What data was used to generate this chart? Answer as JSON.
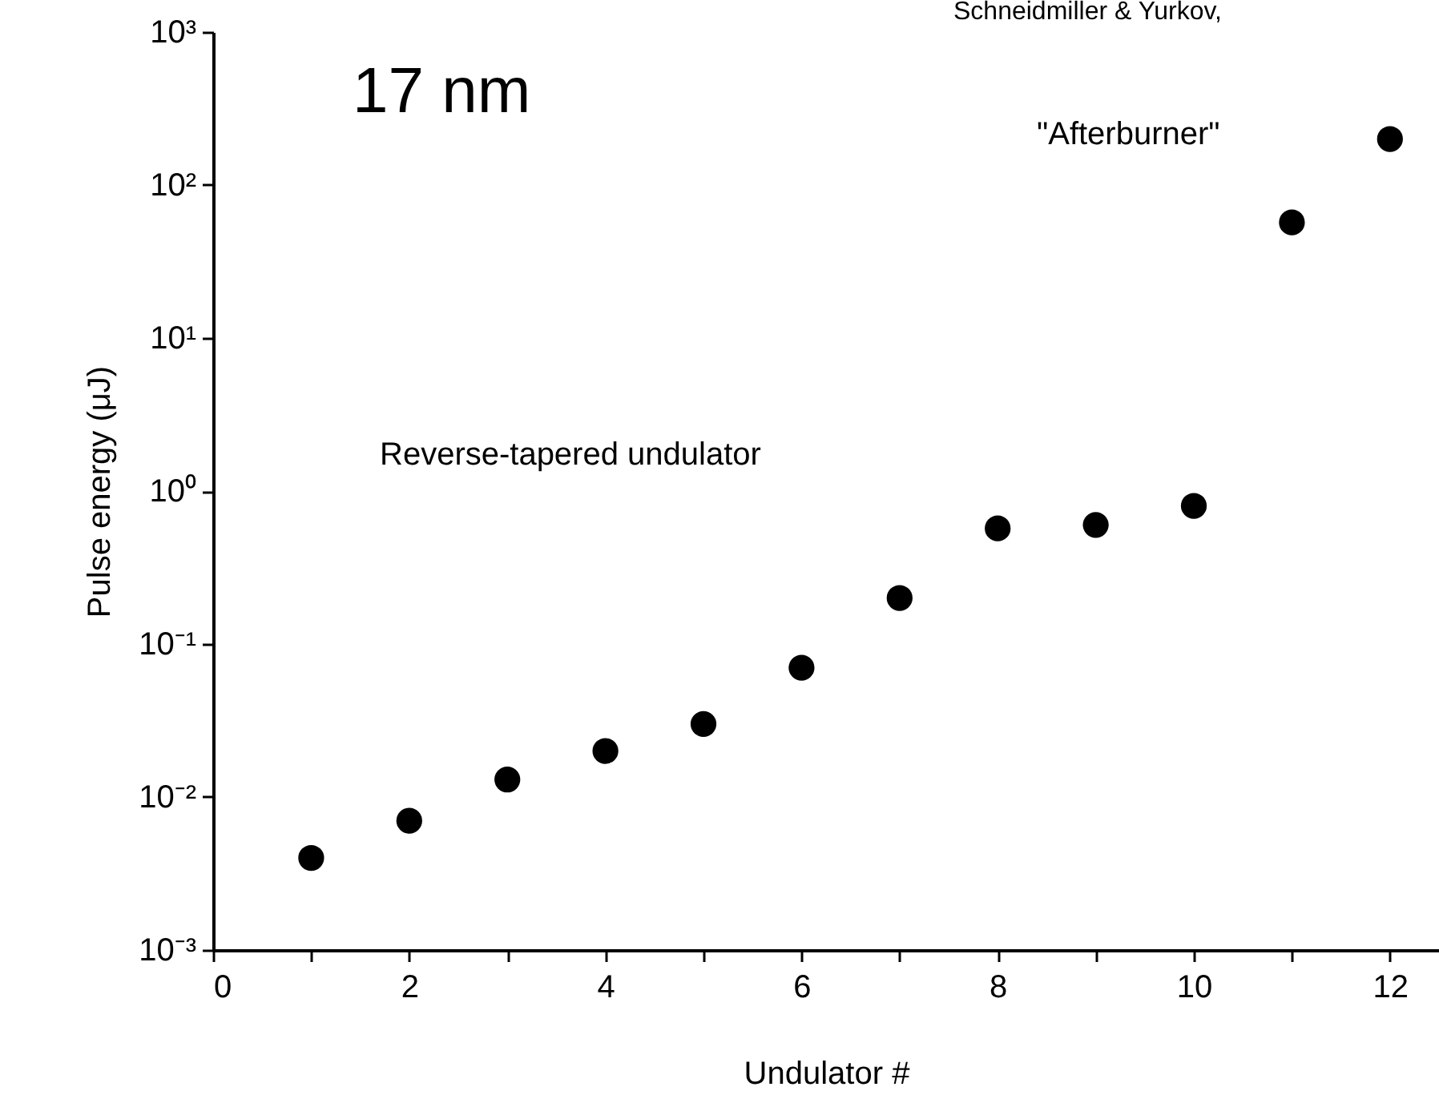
{
  "chart_data": {
    "type": "scatter",
    "xlabel": "Undulator #",
    "ylabel": "Pulse energy (μJ)",
    "x": [
      1,
      2,
      3,
      4,
      5,
      6,
      7,
      8,
      9,
      10,
      11,
      12
    ],
    "series": [
      {
        "color": "#000000",
        "values": [
          0.004,
          0.007,
          0.013,
          0.02,
          0.03,
          0.07,
          0.2,
          0.57,
          0.6,
          0.8,
          57,
          200
        ]
      }
    ],
    "log": "y",
    "grid": false,
    "legend": false,
    "marker": "circle",
    "xlim": [
      0,
      12.5
    ],
    "xticks": [
      0,
      {
        "value": 1,
        "label": null
      },
      2,
      {
        "value": 3,
        "label": null
      },
      4,
      {
        "value": 5,
        "label": null
      },
      6,
      {
        "value": 7,
        "label": null
      },
      8,
      {
        "value": 9,
        "label": null
      },
      10,
      {
        "value": 11,
        "label": null
      },
      12
    ],
    "ylim": [
      0.001,
      1000
    ],
    "yticks": [
      {
        "value": 0.001,
        "label": "10⁻³"
      },
      {
        "value": 0.01,
        "label": "10⁻²"
      },
      {
        "value": 0.1,
        "label": "10⁻¹"
      },
      {
        "value": 1,
        "label": "10⁰"
      },
      {
        "value": 10,
        "label": "10¹"
      },
      {
        "value": 100,
        "label": "10²"
      },
      {
        "value": 1000,
        "label": "10³"
      }
    ],
    "annotations": [
      "17 nm",
      "Reverse-tapered undulator",
      "\"Afterburner\"",
      "Schneidmiller & Yurkov,"
    ]
  }
}
